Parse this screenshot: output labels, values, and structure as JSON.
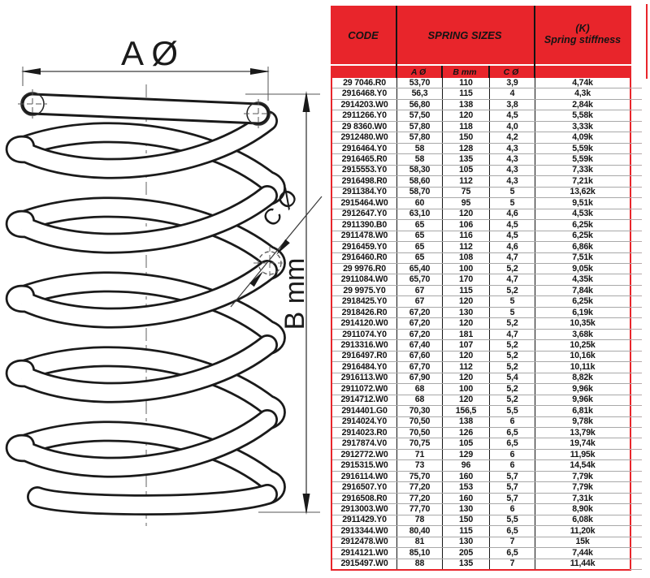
{
  "colors": {
    "accent_red": "#e8252b"
  },
  "diagram": {
    "label_a": "A Ø",
    "label_b": "B mm",
    "label_c": "C Ø"
  },
  "table": {
    "header": {
      "code": "CODE",
      "sizes": "SPRING SIZES",
      "stiffness_line1": "(K)",
      "stiffness_line2": "Spring stiffness"
    },
    "subheader": {
      "a": "A Ø",
      "b": "B mm",
      "c": "C Ø"
    },
    "rows": [
      [
        "29 7046.R0",
        "53,70",
        "110",
        "3,9",
        "4,74k"
      ],
      [
        "2916468.Y0",
        "56,3",
        "115",
        "4",
        "4,3k"
      ],
      [
        "2914203.W0",
        "56,80",
        "138",
        "3,8",
        "2,84k"
      ],
      [
        "2911266.Y0",
        "57,50",
        "120",
        "4,5",
        "5,58k"
      ],
      [
        "29 8360.W0",
        "57,80",
        "118",
        "4,0",
        "3,33k"
      ],
      [
        "2912480.W0",
        "57,80",
        "150",
        "4,2",
        "4,09k"
      ],
      [
        "2916464.Y0",
        "58",
        "128",
        "4,3",
        "5,59k"
      ],
      [
        "2916465.R0",
        "58",
        "135",
        "4,3",
        "5,59k"
      ],
      [
        "2915553.Y0",
        "58,30",
        "105",
        "4,3",
        "7,33k"
      ],
      [
        "2916498.R0",
        "58,60",
        "112",
        "4,3",
        "7,21k"
      ],
      [
        "2911384.Y0",
        "58,70",
        "75",
        "5",
        "13,62k"
      ],
      [
        "2915464.W0",
        "60",
        "95",
        "5",
        "9,51k"
      ],
      [
        "2912647.Y0",
        "63,10",
        "120",
        "4,6",
        "4,53k"
      ],
      [
        "2911390.B0",
        "65",
        "106",
        "4,5",
        "6,25k"
      ],
      [
        "2911478.W0",
        "65",
        "116",
        "4,5",
        "6,25k"
      ],
      [
        "2916459.Y0",
        "65",
        "112",
        "4,6",
        "6,86k"
      ],
      [
        "2916460.R0",
        "65",
        "108",
        "4,7",
        "7,51k"
      ],
      [
        "29 9976.R0",
        "65,40",
        "100",
        "5,2",
        "9,05k"
      ],
      [
        "2911084.W0",
        "65,70",
        "170",
        "4,7",
        "4,35k"
      ],
      [
        "29 9975.Y0",
        "67",
        "115",
        "5,2",
        "7,84k"
      ],
      [
        "2918425.Y0",
        "67",
        "120",
        "5",
        "6,25k"
      ],
      [
        "2918426.R0",
        "67,20",
        "130",
        "5",
        "6,19k"
      ],
      [
        "2914120.W0",
        "67,20",
        "120",
        "5,2",
        "10,35k"
      ],
      [
        "2911074.Y0",
        "67,20",
        "181",
        "4,7",
        "3,68k"
      ],
      [
        "2913316.W0",
        "67,40",
        "107",
        "5,2",
        "10,25k"
      ],
      [
        "2916497.R0",
        "67,60",
        "120",
        "5,2",
        "10,16k"
      ],
      [
        "2916484.Y0",
        "67,70",
        "112",
        "5,2",
        "10,11k"
      ],
      [
        "2916113.W0",
        "67,90",
        "120",
        "5,4",
        "8,82k"
      ],
      [
        "2911072.W0",
        "68",
        "100",
        "5,2",
        "9,96k"
      ],
      [
        "2914712.W0",
        "68",
        "120",
        "5,2",
        "9,96k"
      ],
      [
        "2914401.G0",
        "70,30",
        "156,5",
        "5,5",
        "6,81k"
      ],
      [
        "2914024.Y0",
        "70,50",
        "138",
        "6",
        "9,78k"
      ],
      [
        "2914023.R0",
        "70,50",
        "126",
        "6,5",
        "13,79k"
      ],
      [
        "2917874.V0",
        "70,75",
        "105",
        "6,5",
        "19,74k"
      ],
      [
        "2912772.W0",
        "71",
        "129",
        "6",
        "11,95k"
      ],
      [
        "2915315.W0",
        "73",
        "96",
        "6",
        "14,54k"
      ],
      [
        "2916114.W0",
        "75,70",
        "160",
        "5,7",
        "7,79k"
      ],
      [
        "2916507.Y0",
        "77,20",
        "153",
        "5,7",
        "7,79k"
      ],
      [
        "2916508.R0",
        "77,20",
        "160",
        "5,7",
        "7,31k"
      ],
      [
        "2913003.W0",
        "77,70",
        "130",
        "6",
        "8,90k"
      ],
      [
        "2911429.Y0",
        "78",
        "150",
        "5,5",
        "6,08k"
      ],
      [
        "2913344.W0",
        "80,40",
        "115",
        "6,5",
        "11,20k"
      ],
      [
        "2912478.W0",
        "81",
        "130",
        "7",
        "15k"
      ],
      [
        "2914121.W0",
        "85,10",
        "205",
        "6,5",
        "7,44k"
      ],
      [
        "2915497.W0",
        "88",
        "135",
        "7",
        "11,44k"
      ]
    ]
  }
}
